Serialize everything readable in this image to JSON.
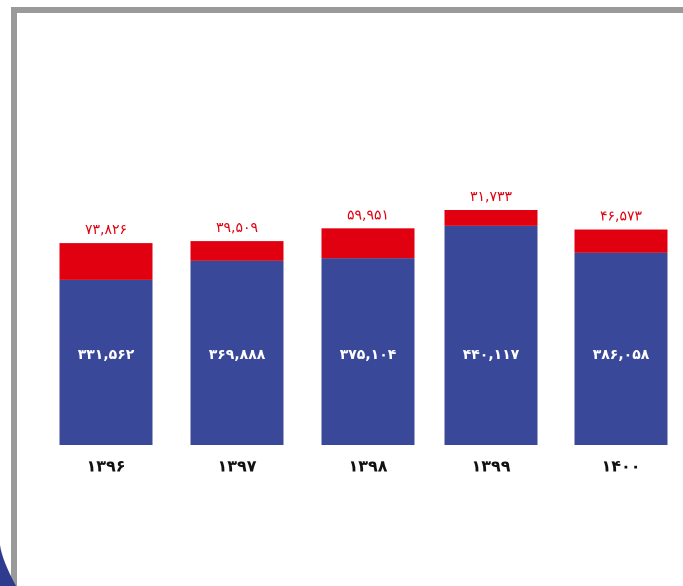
{
  "chart_data": {
    "type": "stacked-bar",
    "categories": [
      "۱۳۹۶",
      "۱۳۹۷",
      "۱۳۹۸",
      "۱۳۹۹",
      "۱۴۰۰"
    ],
    "series": [
      {
        "color": "#3a4899",
        "values": [
          331562,
          369888,
          375104,
          440117,
          386058
        ],
        "value_labels": [
          "۳۳۱,۵۶۲",
          "۳۶۹,۸۸۸",
          "۳۷۵,۱۰۴",
          "۴۴۰,۱۱۷",
          "۳۸۶,۰۵۸"
        ]
      },
      {
        "color": "#e0000f",
        "values": [
          73826,
          39509,
          59951,
          31733,
          46573
        ],
        "value_labels": [
          "۷۳,۸۲۶",
          "۳۹,۵۰۹",
          "۵۹,۹۵۱",
          "۳۱,۷۳۳",
          "۴۶,۵۷۳"
        ]
      }
    ]
  }
}
